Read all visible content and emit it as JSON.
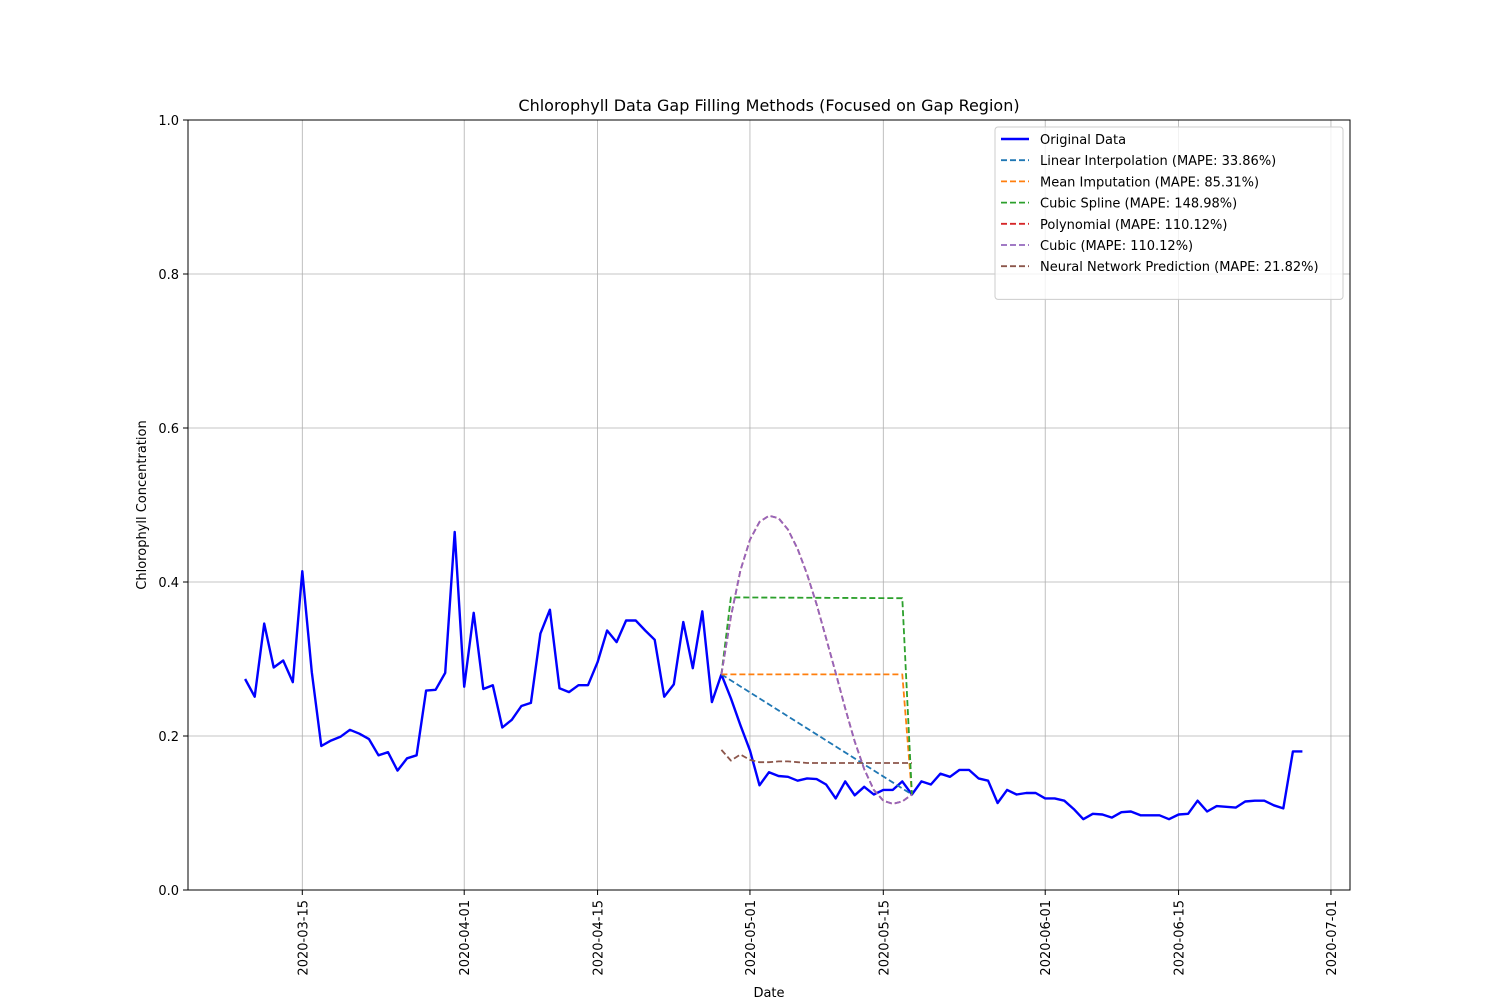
{
  "chart_data": {
    "type": "line",
    "title": "Chlorophyll Data Gap Filling Methods (Focused on Gap Region)",
    "xlabel": "Date",
    "ylabel": "Chlorophyll Concentration",
    "xlim": [
      "2020-03-03",
      "2020-07-03"
    ],
    "ylim": [
      0,
      1
    ],
    "x_ticks": [
      "2020-03-15",
      "2020-04-01",
      "2020-04-15",
      "2020-05-01",
      "2020-05-15",
      "2020-06-01",
      "2020-06-15",
      "2020-07-01"
    ],
    "y_ticks": [
      "0.0",
      "0.2",
      "0.4",
      "0.6",
      "0.8",
      "1.0"
    ],
    "grid": true,
    "legend_position": "top-right",
    "series": [
      {
        "name": "Original Data",
        "color": "#0000ff",
        "style": "solid",
        "points": [
          [
            "2020-03-09",
            0.274
          ],
          [
            "2020-03-10",
            0.251
          ],
          [
            "2020-03-11",
            0.346
          ],
          [
            "2020-03-12",
            0.289
          ],
          [
            "2020-03-13",
            0.298
          ],
          [
            "2020-03-14",
            0.27
          ],
          [
            "2020-03-15",
            0.414
          ],
          [
            "2020-03-16",
            0.283
          ],
          [
            "2020-03-17",
            0.187
          ],
          [
            "2020-03-18",
            0.194
          ],
          [
            "2020-03-19",
            0.199
          ],
          [
            "2020-03-20",
            0.208
          ],
          [
            "2020-03-21",
            0.203
          ],
          [
            "2020-03-22",
            0.196
          ],
          [
            "2020-03-23",
            0.175
          ],
          [
            "2020-03-24",
            0.179
          ],
          [
            "2020-03-25",
            0.155
          ],
          [
            "2020-03-26",
            0.171
          ],
          [
            "2020-03-27",
            0.175
          ],
          [
            "2020-03-28",
            0.259
          ],
          [
            "2020-03-29",
            0.26
          ],
          [
            "2020-03-30",
            0.282
          ],
          [
            "2020-03-31",
            0.465
          ],
          [
            "2020-04-01",
            0.264
          ],
          [
            "2020-04-02",
            0.36
          ],
          [
            "2020-04-03",
            0.261
          ],
          [
            "2020-04-04",
            0.266
          ],
          [
            "2020-04-05",
            0.211
          ],
          [
            "2020-04-06",
            0.221
          ],
          [
            "2020-04-07",
            0.239
          ],
          [
            "2020-04-08",
            0.243
          ],
          [
            "2020-04-09",
            0.333
          ],
          [
            "2020-04-10",
            0.364
          ],
          [
            "2020-04-11",
            0.262
          ],
          [
            "2020-04-12",
            0.257
          ],
          [
            "2020-04-13",
            0.266
          ],
          [
            "2020-04-14",
            0.266
          ],
          [
            "2020-04-15",
            0.296
          ],
          [
            "2020-04-16",
            0.337
          ],
          [
            "2020-04-17",
            0.322
          ],
          [
            "2020-04-18",
            0.35
          ],
          [
            "2020-04-19",
            0.35
          ],
          [
            "2020-04-20",
            0.337
          ],
          [
            "2020-04-21",
            0.325
          ],
          [
            "2020-04-22",
            0.251
          ],
          [
            "2020-04-23",
            0.267
          ],
          [
            "2020-04-24",
            0.348
          ],
          [
            "2020-04-25",
            0.288
          ],
          [
            "2020-04-26",
            0.362
          ],
          [
            "2020-04-27",
            0.244
          ],
          [
            "2020-04-28",
            0.28
          ],
          [
            "2020-04-29",
            0.249
          ],
          [
            "2020-04-30",
            0.214
          ],
          [
            "2020-05-01",
            0.181
          ],
          [
            "2020-05-02",
            0.136
          ],
          [
            "2020-05-03",
            0.153
          ],
          [
            "2020-05-04",
            0.148
          ],
          [
            "2020-05-05",
            0.147
          ],
          [
            "2020-05-06",
            0.142
          ],
          [
            "2020-05-07",
            0.145
          ],
          [
            "2020-05-08",
            0.144
          ],
          [
            "2020-05-09",
            0.137
          ],
          [
            "2020-05-10",
            0.119
          ],
          [
            "2020-05-11",
            0.141
          ],
          [
            "2020-05-12",
            0.123
          ],
          [
            "2020-05-13",
            0.134
          ],
          [
            "2020-05-14",
            0.124
          ],
          [
            "2020-05-15",
            0.13
          ],
          [
            "2020-05-16",
            0.13
          ],
          [
            "2020-05-17",
            0.141
          ],
          [
            "2020-05-18",
            0.124
          ],
          [
            "2020-05-19",
            0.141
          ],
          [
            "2020-05-20",
            0.137
          ],
          [
            "2020-05-21",
            0.151
          ],
          [
            "2020-05-22",
            0.147
          ],
          [
            "2020-05-23",
            0.156
          ],
          [
            "2020-05-24",
            0.156
          ],
          [
            "2020-05-25",
            0.145
          ],
          [
            "2020-05-26",
            0.142
          ],
          [
            "2020-05-27",
            0.113
          ],
          [
            "2020-05-28",
            0.13
          ],
          [
            "2020-05-29",
            0.124
          ],
          [
            "2020-05-30",
            0.126
          ],
          [
            "2020-05-31",
            0.126
          ],
          [
            "2020-06-01",
            0.119
          ],
          [
            "2020-06-02",
            0.119
          ],
          [
            "2020-06-03",
            0.116
          ],
          [
            "2020-06-04",
            0.105
          ],
          [
            "2020-06-05",
            0.092
          ],
          [
            "2020-06-06",
            0.099
          ],
          [
            "2020-06-07",
            0.098
          ],
          [
            "2020-06-08",
            0.094
          ],
          [
            "2020-06-09",
            0.101
          ],
          [
            "2020-06-10",
            0.102
          ],
          [
            "2020-06-11",
            0.097
          ],
          [
            "2020-06-12",
            0.097
          ],
          [
            "2020-06-13",
            0.097
          ],
          [
            "2020-06-14",
            0.092
          ],
          [
            "2020-06-15",
            0.098
          ],
          [
            "2020-06-16",
            0.099
          ],
          [
            "2020-06-17",
            0.116
          ],
          [
            "2020-06-18",
            0.102
          ],
          [
            "2020-06-19",
            0.109
          ],
          [
            "2020-06-20",
            0.108
          ],
          [
            "2020-06-21",
            0.107
          ],
          [
            "2020-06-22",
            0.115
          ],
          [
            "2020-06-23",
            0.116
          ],
          [
            "2020-06-24",
            0.116
          ],
          [
            "2020-06-25",
            0.11
          ],
          [
            "2020-06-26",
            0.106
          ],
          [
            "2020-06-27",
            0.18
          ],
          [
            "2020-06-28",
            0.18
          ]
        ]
      },
      {
        "name": "Linear Interpolation (MAPE: 33.86%)",
        "color": "#1f77b4",
        "style": "dashed",
        "points": [
          [
            "2020-04-28",
            0.28
          ],
          [
            "2020-05-18",
            0.124
          ]
        ]
      },
      {
        "name": "Mean Imputation (MAPE: 85.31%)",
        "color": "#ff7f0e",
        "style": "dashed",
        "points": [
          [
            "2020-04-28",
            0.28
          ],
          [
            "2020-05-17",
            0.28
          ],
          [
            "2020-05-18",
            0.124
          ]
        ]
      },
      {
        "name": "Cubic Spline (MAPE: 148.98%)",
        "color": "#2ca02c",
        "style": "dashed",
        "points": [
          [
            "2020-04-28",
            0.28
          ],
          [
            "2020-04-29",
            0.38
          ],
          [
            "2020-05-17",
            0.379
          ],
          [
            "2020-05-18",
            0.124
          ]
        ]
      },
      {
        "name": "Polynomial (MAPE: 110.12%)",
        "color": "#d62728",
        "style": "dashed",
        "points": [
          [
            "2020-04-28",
            0.28
          ],
          [
            "2020-04-29",
            0.355
          ],
          [
            "2020-04-30",
            0.415
          ],
          [
            "2020-05-01",
            0.455
          ],
          [
            "2020-05-02",
            0.478
          ],
          [
            "2020-05-03",
            0.486
          ],
          [
            "2020-05-04",
            0.483
          ],
          [
            "2020-05-05",
            0.468
          ],
          [
            "2020-05-06",
            0.443
          ],
          [
            "2020-05-07",
            0.41
          ],
          [
            "2020-05-08",
            0.371
          ],
          [
            "2020-05-09",
            0.327
          ],
          [
            "2020-05-10",
            0.282
          ],
          [
            "2020-05-11",
            0.236
          ],
          [
            "2020-05-12",
            0.193
          ],
          [
            "2020-05-13",
            0.157
          ],
          [
            "2020-05-14",
            0.13
          ],
          [
            "2020-05-15",
            0.116
          ],
          [
            "2020-05-16",
            0.112
          ],
          [
            "2020-05-17",
            0.115
          ],
          [
            "2020-05-18",
            0.124
          ]
        ]
      },
      {
        "name": "Cubic (MAPE: 110.12%)",
        "color": "#9467bd",
        "style": "dashed",
        "points": [
          [
            "2020-04-28",
            0.28
          ],
          [
            "2020-04-29",
            0.355
          ],
          [
            "2020-04-30",
            0.415
          ],
          [
            "2020-05-01",
            0.455
          ],
          [
            "2020-05-02",
            0.478
          ],
          [
            "2020-05-03",
            0.486
          ],
          [
            "2020-05-04",
            0.483
          ],
          [
            "2020-05-05",
            0.468
          ],
          [
            "2020-05-06",
            0.443
          ],
          [
            "2020-05-07",
            0.41
          ],
          [
            "2020-05-08",
            0.371
          ],
          [
            "2020-05-09",
            0.327
          ],
          [
            "2020-05-10",
            0.282
          ],
          [
            "2020-05-11",
            0.236
          ],
          [
            "2020-05-12",
            0.193
          ],
          [
            "2020-05-13",
            0.157
          ],
          [
            "2020-05-14",
            0.13
          ],
          [
            "2020-05-15",
            0.116
          ],
          [
            "2020-05-16",
            0.112
          ],
          [
            "2020-05-17",
            0.115
          ],
          [
            "2020-05-18",
            0.124
          ]
        ]
      },
      {
        "name": "Neural Network Prediction (MAPE: 21.82%)",
        "color": "#8c564b",
        "style": "dashed",
        "points": [
          [
            "2020-04-28",
            0.182
          ],
          [
            "2020-04-29",
            0.168
          ],
          [
            "2020-04-30",
            0.176
          ],
          [
            "2020-05-01",
            0.169
          ],
          [
            "2020-05-02",
            0.166
          ],
          [
            "2020-05-03",
            0.166
          ],
          [
            "2020-05-04",
            0.167
          ],
          [
            "2020-05-05",
            0.167
          ],
          [
            "2020-05-06",
            0.166
          ],
          [
            "2020-05-07",
            0.165
          ],
          [
            "2020-05-08",
            0.165
          ],
          [
            "2020-05-09",
            0.165
          ],
          [
            "2020-05-10",
            0.165
          ],
          [
            "2020-05-11",
            0.165
          ],
          [
            "2020-05-12",
            0.165
          ],
          [
            "2020-05-13",
            0.165
          ],
          [
            "2020-05-14",
            0.165
          ],
          [
            "2020-05-15",
            0.165
          ],
          [
            "2020-05-16",
            0.165
          ],
          [
            "2020-05-17",
            0.165
          ],
          [
            "2020-05-18",
            0.165
          ]
        ]
      }
    ]
  }
}
